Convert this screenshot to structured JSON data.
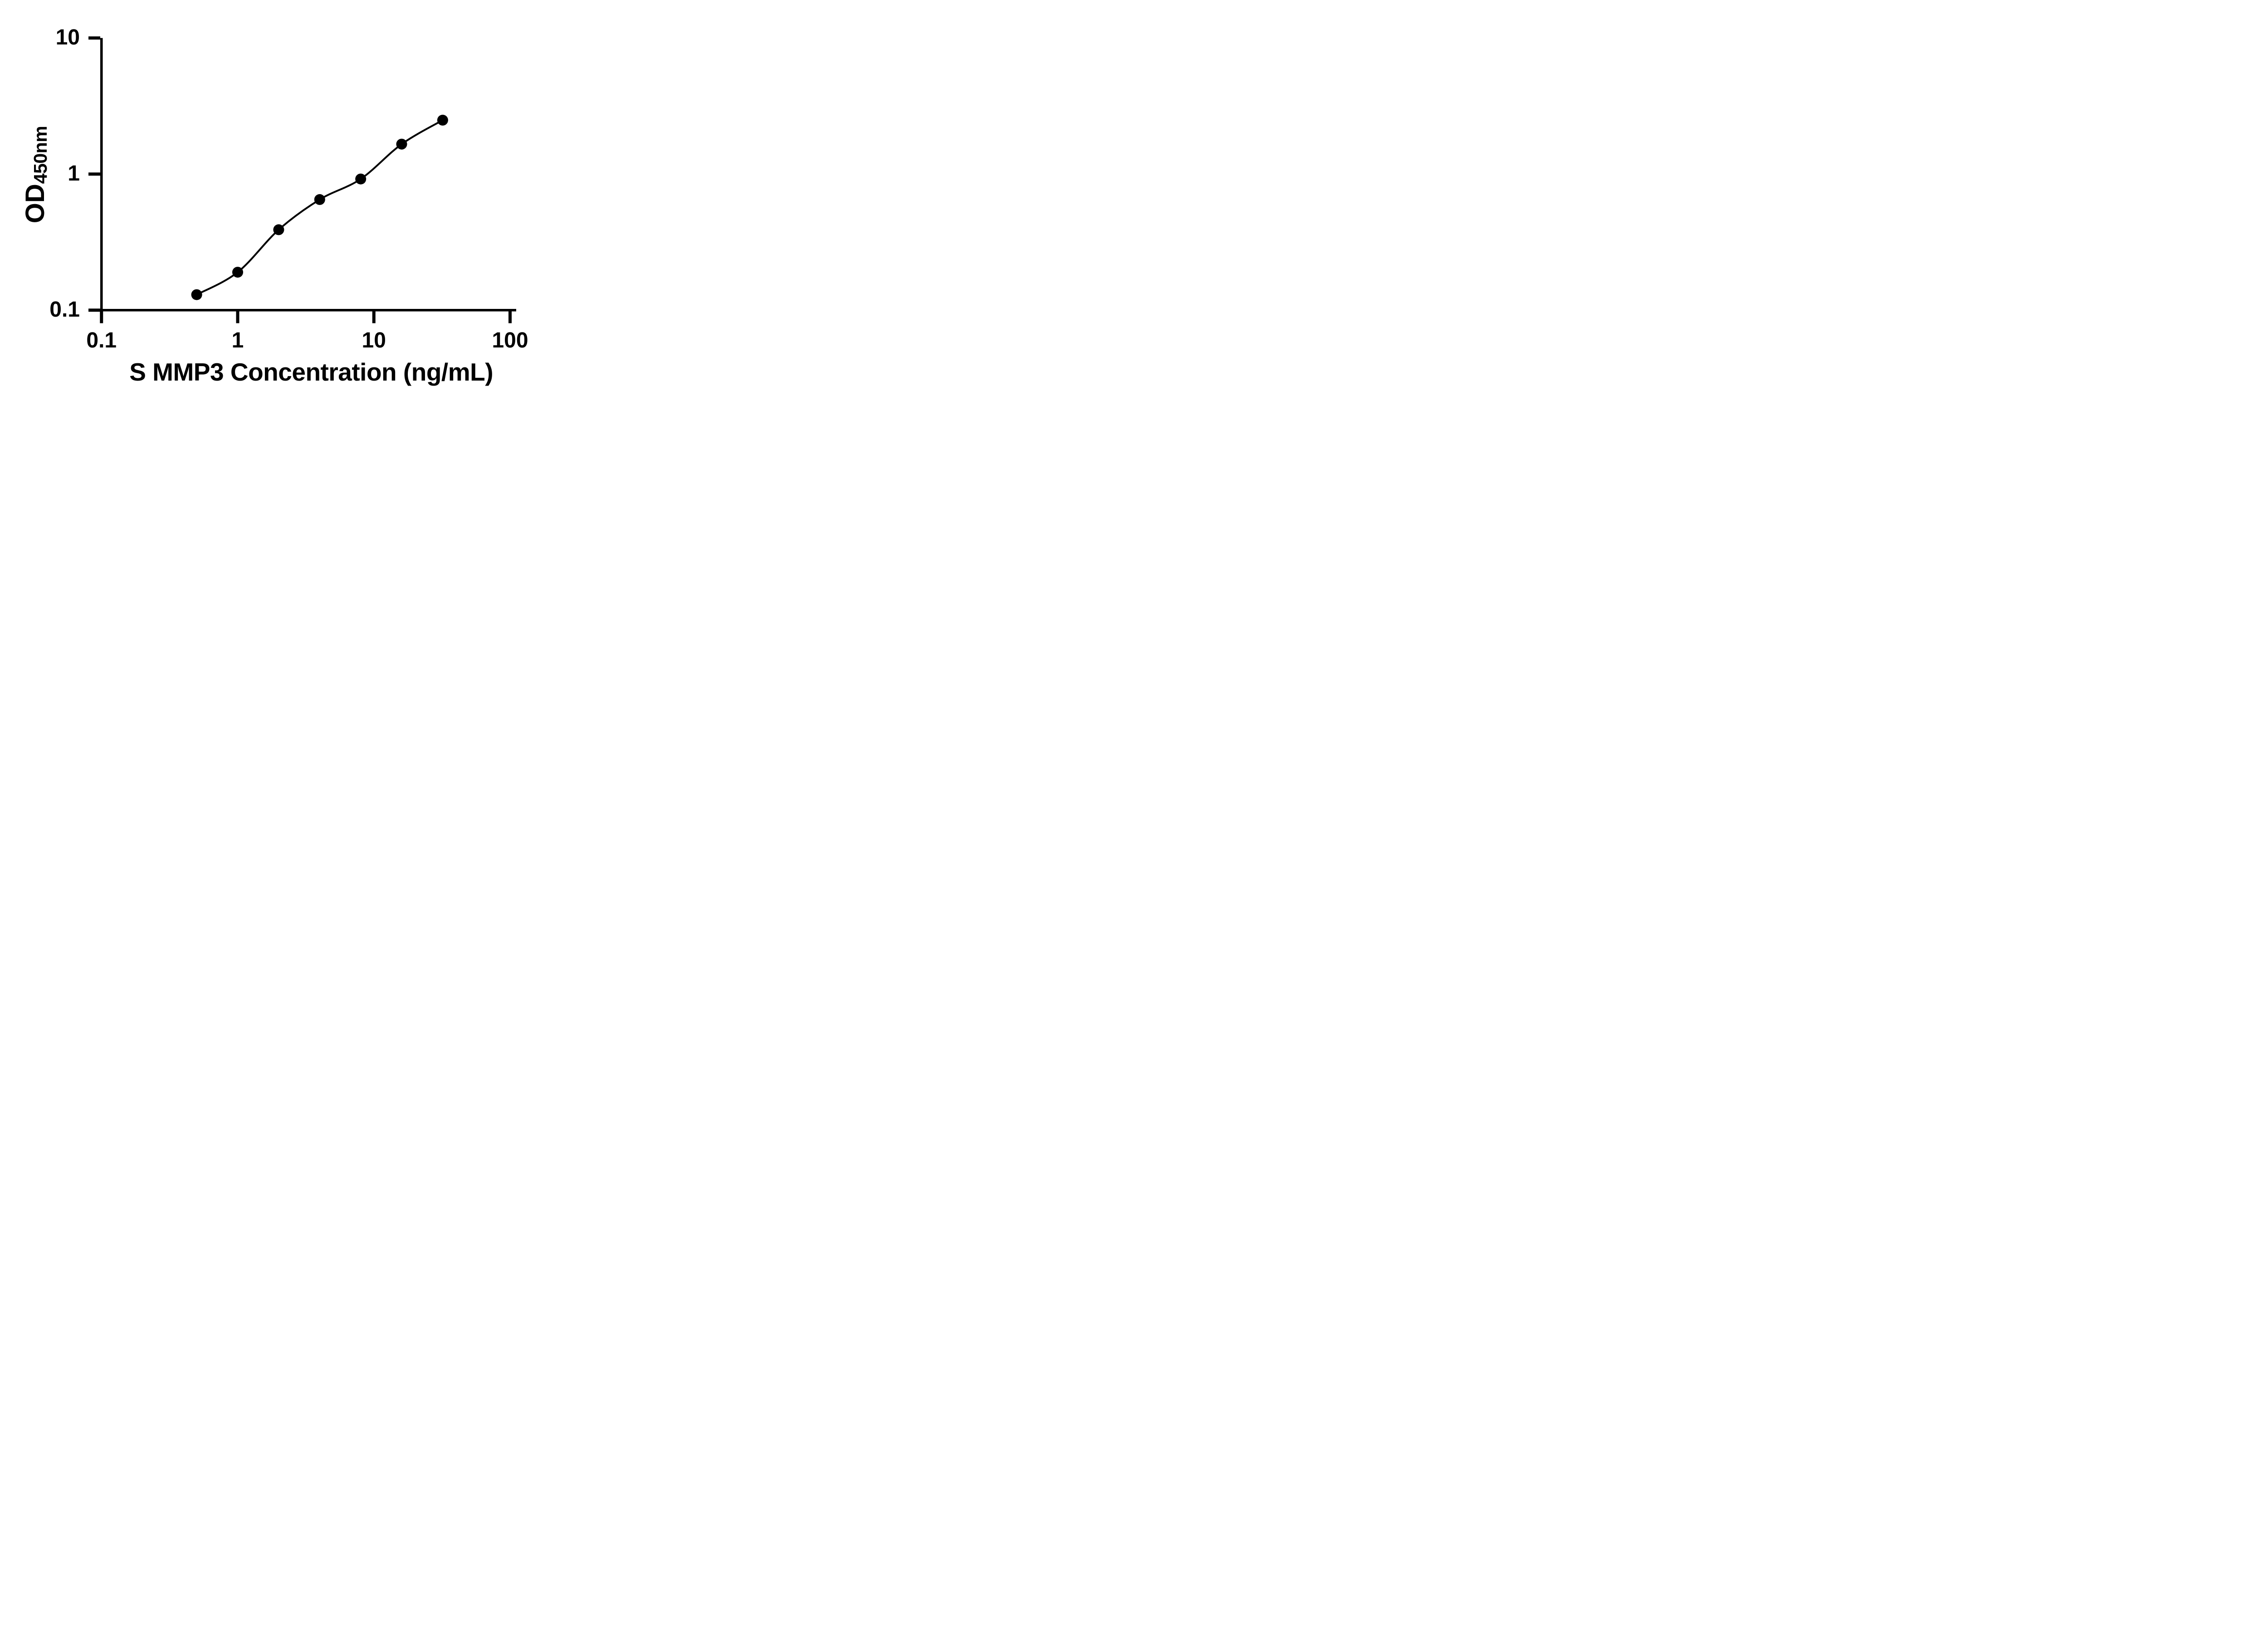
{
  "figure": {
    "background_color": "#ffffff",
    "ink_color": "#000000"
  },
  "chart_data": {
    "type": "scatter",
    "subtype": "ELISA standard curve with fit line",
    "title": "",
    "xlabel": "S MMP3 Concentration (ng/mL)",
    "ylabel_main": "OD",
    "ylabel_subscript": "450nm",
    "x_scale": "log",
    "y_scale": "log",
    "xlim": [
      0.1,
      100
    ],
    "ylim": [
      0.1,
      10
    ],
    "x_ticks": [
      0.1,
      1,
      10,
      100
    ],
    "x_tick_labels": [
      "0.1",
      "1",
      "10",
      "100"
    ],
    "y_ticks": [
      0.1,
      1,
      10
    ],
    "y_tick_labels": [
      "0.1",
      "1",
      "10"
    ],
    "grid": false,
    "legend": "none",
    "marker_style": "filled-circle",
    "marker_color": "#000000",
    "line_color": "#000000",
    "series": [
      {
        "name": "standard-curve",
        "x": [
          0.5,
          1,
          2,
          4,
          8,
          16,
          32
        ],
        "od": [
          0.13,
          0.19,
          0.39,
          0.65,
          0.92,
          1.66,
          2.49
        ],
        "fit_line": true
      }
    ]
  }
}
